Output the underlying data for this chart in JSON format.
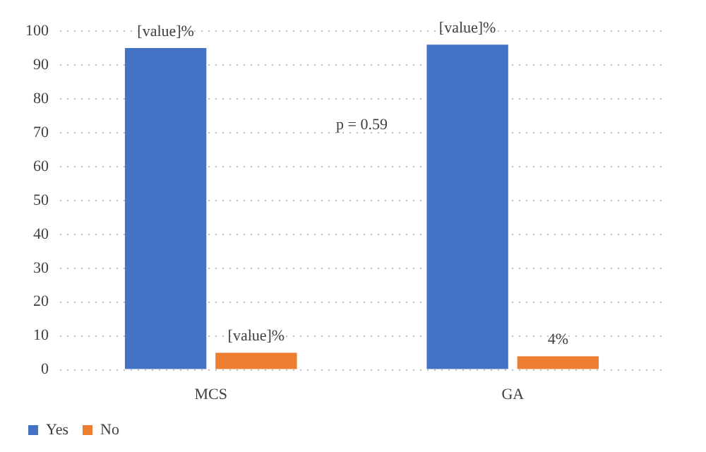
{
  "chart_data": {
    "type": "bar",
    "categories": [
      "MCS",
      "GA"
    ],
    "series": [
      {
        "name": "Yes",
        "color": "#4472c4",
        "values": [
          95,
          96
        ],
        "value_labels": [
          "[value]%",
          "[value]%"
        ]
      },
      {
        "name": "No",
        "color": "#ed7d31",
        "values": [
          5,
          4
        ],
        "value_labels": [
          "[value]%",
          "4%"
        ]
      }
    ],
    "ylim": [
      0,
      100
    ],
    "yticks": [
      0,
      10,
      20,
      30,
      40,
      50,
      60,
      70,
      80,
      90,
      100
    ],
    "grid": "y",
    "legend": "bottom left",
    "annotations": [
      "p = 0.59"
    ]
  }
}
